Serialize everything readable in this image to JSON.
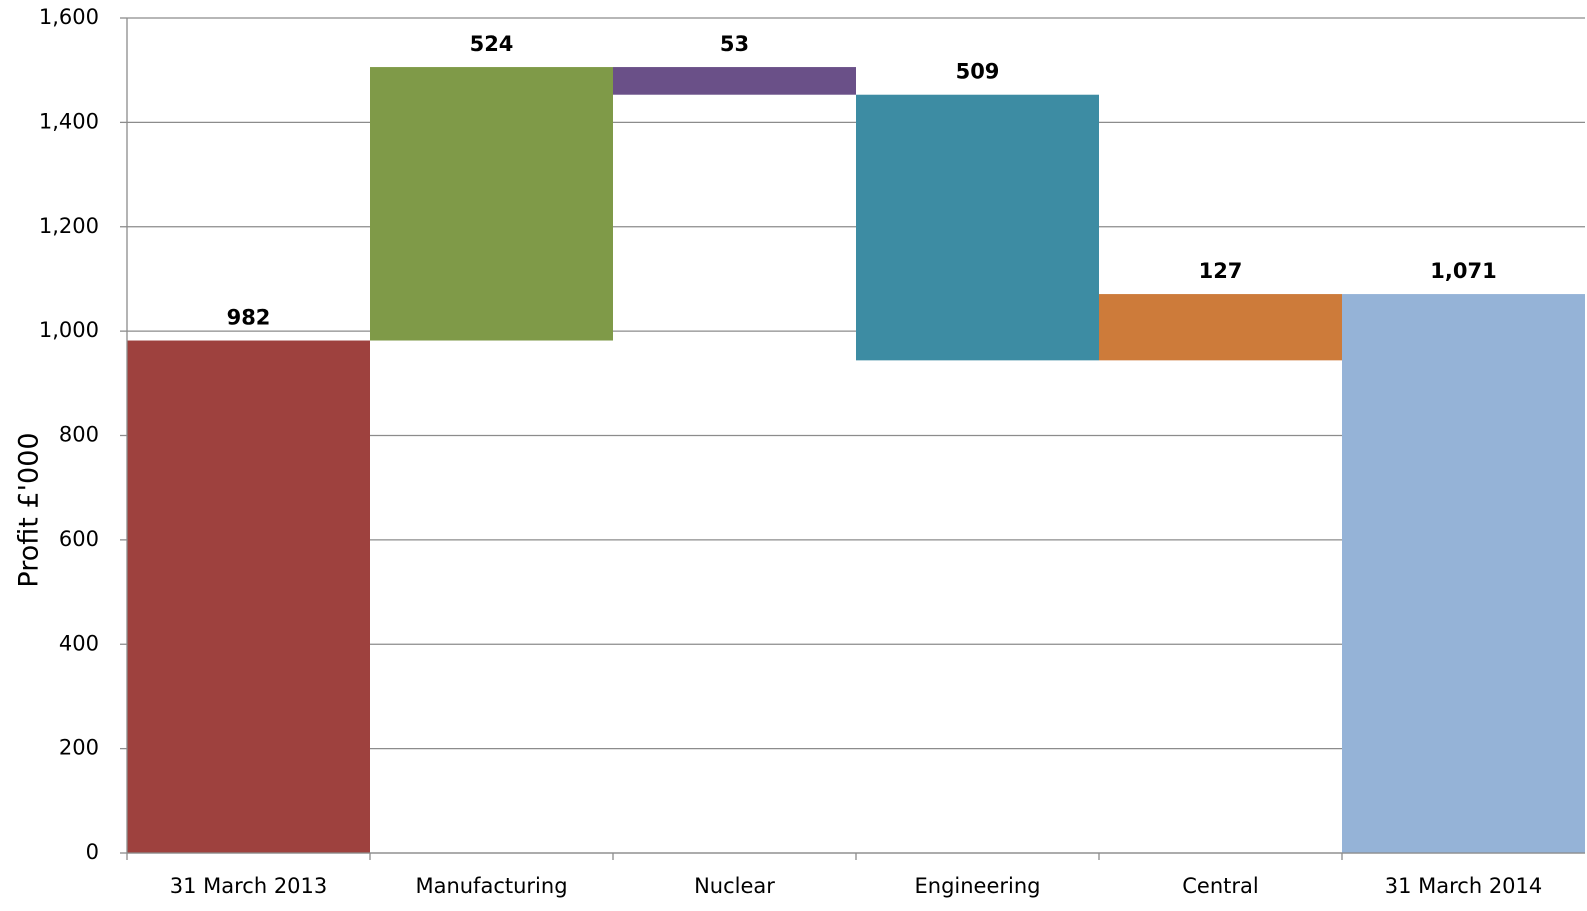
{
  "chart_data": {
    "type": "waterfall",
    "y_label": "Profit  £'000",
    "categories": [
      "31 March 2013",
      "Manufacturing",
      "Nuclear",
      "Engineering",
      "Central",
      "31 March 2014"
    ],
    "values": [
      982,
      524,
      -53,
      -509,
      127,
      1071
    ],
    "value_labels": [
      "982",
      "524",
      "53",
      "509",
      "127",
      "1,071"
    ],
    "is_total": [
      true,
      false,
      false,
      false,
      false,
      true
    ],
    "colors": [
      "#9e413e",
      "#7f9a48",
      "#6a5088",
      "#3d8ca3",
      "#cd7b3a",
      "#95b3d7"
    ],
    "ylim": [
      0,
      1600
    ],
    "yticks": [
      0,
      200,
      400,
      600,
      800,
      {
        "value": 1000,
        "label": "1,000"
      },
      {
        "value": 1200,
        "label": "1,200"
      },
      {
        "value": 1400,
        "label": "1,400"
      },
      {
        "value": 1600,
        "label": "1,600"
      }
    ],
    "grid": true
  }
}
